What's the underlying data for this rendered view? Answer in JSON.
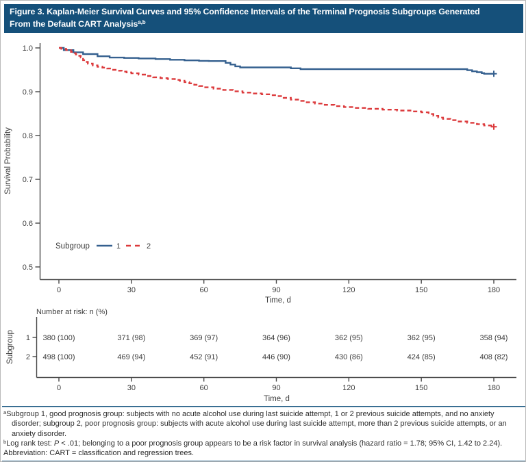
{
  "title": {
    "line1": "Figure 3. Kaplan-Meier Survival Curves and 95% Confidence Intervals of the Terminal Prognosis Subgroups Generated",
    "line2": "From the Default CART Analysis",
    "superscript": "a,b"
  },
  "colors": {
    "title_bar": "#15507A",
    "divider": "#3A6F93",
    "subgroup1": "#35608F",
    "subgroup2": "#DC3A3C",
    "axis": "#474747",
    "text": "#3c3c3c"
  },
  "chart_data": {
    "type": "line",
    "subtype": "kaplan-meier-step",
    "title": "",
    "xlabel": "Time, d",
    "ylabel": "Survival Probability",
    "xlim": [
      0,
      189
    ],
    "ylim": [
      0.5,
      1.0
    ],
    "grid": false,
    "xticks": [
      0,
      30,
      60,
      90,
      120,
      150,
      180
    ],
    "ytick_labels": [
      "1.0",
      "0.9",
      "0.8",
      "0.7",
      "0.6",
      "0.5"
    ],
    "legend": {
      "title": "Subgroup",
      "position": "inside-bottom-left",
      "entries": [
        {
          "label": "1",
          "line": "solid",
          "color": "#35608F"
        },
        {
          "label": "2",
          "line": "dashed",
          "color": "#DC3A3C"
        }
      ]
    },
    "series": [
      {
        "name": "1",
        "line": "solid",
        "color": "#35608F",
        "censored_at_end": true,
        "points": [
          [
            0,
            1.0
          ],
          [
            2,
            0.995
          ],
          [
            6,
            0.99
          ],
          [
            10,
            0.986
          ],
          [
            16,
            0.981
          ],
          [
            21,
            0.978
          ],
          [
            27,
            0.977
          ],
          [
            33,
            0.976
          ],
          [
            40,
            0.9745
          ],
          [
            46,
            0.973
          ],
          [
            52,
            0.9715
          ],
          [
            58,
            0.9705
          ],
          [
            62,
            0.97
          ],
          [
            69,
            0.966
          ],
          [
            71,
            0.962
          ],
          [
            73,
            0.958
          ],
          [
            75,
            0.9555
          ],
          [
            96,
            0.9535
          ],
          [
            100,
            0.9515
          ],
          [
            168,
            0.9515
          ],
          [
            169,
            0.949
          ],
          [
            171,
            0.9465
          ],
          [
            173,
            0.9445
          ],
          [
            175,
            0.9425
          ],
          [
            176,
            0.941
          ],
          [
            180,
            0.941
          ]
        ]
      },
      {
        "name": "2",
        "line": "dashed",
        "color": "#DC3A3C",
        "censored_at_end": true,
        "points": [
          [
            0,
            1.0
          ],
          [
            1,
            0.998
          ],
          [
            3,
            0.995
          ],
          [
            5,
            0.991
          ],
          [
            6,
            0.988
          ],
          [
            7,
            0.985
          ],
          [
            8,
            0.982
          ],
          [
            9,
            0.978
          ],
          [
            10,
            0.972
          ],
          [
            11,
            0.968
          ],
          [
            12,
            0.964
          ],
          [
            14,
            0.96
          ],
          [
            16,
            0.957
          ],
          [
            18,
            0.955
          ],
          [
            20,
            0.953
          ],
          [
            22,
            0.95
          ],
          [
            24,
            0.948
          ],
          [
            26,
            0.946
          ],
          [
            28,
            0.944
          ],
          [
            30,
            0.942
          ],
          [
            33,
            0.939
          ],
          [
            36,
            0.936
          ],
          [
            39,
            0.933
          ],
          [
            42,
            0.931
          ],
          [
            45,
            0.929
          ],
          [
            48,
            0.927
          ],
          [
            50,
            0.925
          ],
          [
            52,
            0.922
          ],
          [
            54,
            0.919
          ],
          [
            56,
            0.916
          ],
          [
            58,
            0.913
          ],
          [
            60,
            0.91
          ],
          [
            64,
            0.907
          ],
          [
            68,
            0.904
          ],
          [
            72,
            0.901
          ],
          [
            76,
            0.898
          ],
          [
            80,
            0.896
          ],
          [
            84,
            0.894
          ],
          [
            88,
            0.892
          ],
          [
            90,
            0.89
          ],
          [
            93,
            0.886
          ],
          [
            96,
            0.882
          ],
          [
            99,
            0.879
          ],
          [
            102,
            0.876
          ],
          [
            106,
            0.873
          ],
          [
            110,
            0.87
          ],
          [
            114,
            0.867
          ],
          [
            118,
            0.865
          ],
          [
            122,
            0.863
          ],
          [
            128,
            0.861
          ],
          [
            134,
            0.859
          ],
          [
            140,
            0.857
          ],
          [
            146,
            0.855
          ],
          [
            150,
            0.853
          ],
          [
            153,
            0.849
          ],
          [
            155,
            0.845
          ],
          [
            157,
            0.841
          ],
          [
            159,
            0.838
          ],
          [
            162,
            0.835
          ],
          [
            165,
            0.832
          ],
          [
            169,
            0.829
          ],
          [
            173,
            0.826
          ],
          [
            176,
            0.823
          ],
          [
            180,
            0.82
          ]
        ]
      }
    ],
    "number_at_risk": {
      "header": "Number at risk: n (%)",
      "row_axis_label": "Subgroup",
      "xlabel": "Time, d",
      "times": [
        0,
        30,
        60,
        90,
        120,
        150,
        180
      ],
      "rows": [
        {
          "label": "1",
          "values": [
            "380 (100)",
            "371 (98)",
            "369 (97)",
            "364 (96)",
            "362 (95)",
            "362 (95)",
            "358 (94)"
          ]
        },
        {
          "label": "2",
          "values": [
            "498 (100)",
            "469 (94)",
            "452 (91)",
            "446 (90)",
            "430 (86)",
            "424 (85)",
            "408 (82)"
          ]
        }
      ]
    }
  },
  "footnotes": {
    "a": {
      "marker": "a",
      "text": "Subgroup 1, good prognosis group: subjects with no acute alcohol use during last suicide attempt, 1 or 2 previous suicide attempts, and no anxiety disorder; subgroup 2, poor prognosis group: subjects with acute alcohol use during last suicide attempt, more than 2 previous suicide attempts, or an anxiety disorder."
    },
    "b": {
      "marker": "b",
      "prefix": "Log rank test: ",
      "italic": "P",
      "rest": " < .01; belonging to a poor prognosis group appears to be a risk factor in survival analysis (hazard ratio = 1.78; 95% CI,  1.42 to 2.24)."
    },
    "abbreviation": "Abbreviation: CART = classification and regression trees."
  }
}
